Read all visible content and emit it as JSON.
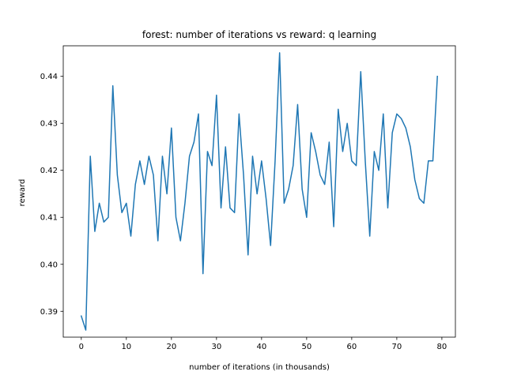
{
  "chart_data": {
    "type": "line",
    "title": "forest: number of iterations vs reward: q learning",
    "xlabel": "number of iterations (in thousands)",
    "ylabel": "reward",
    "xlim": [
      -4,
      83
    ],
    "ylim": [
      0.3845,
      0.4465
    ],
    "xticks": [
      0,
      10,
      20,
      30,
      40,
      50,
      60,
      70,
      80
    ],
    "yticks": [
      0.39,
      0.4,
      0.41,
      0.42,
      0.43,
      0.44
    ],
    "ytick_labels": [
      "0.39",
      "0.40",
      "0.41",
      "0.42",
      "0.43",
      "0.44"
    ],
    "grid": false,
    "series": [
      {
        "color": "#1f77b4",
        "x": [
          0,
          1,
          2,
          3,
          4,
          5,
          6,
          7,
          8,
          9,
          10,
          11,
          12,
          13,
          14,
          15,
          16,
          17,
          18,
          19,
          20,
          21,
          22,
          23,
          24,
          25,
          26,
          27,
          28,
          29,
          30,
          31,
          32,
          33,
          34,
          35,
          36,
          37,
          38,
          39,
          40,
          41,
          42,
          43,
          44,
          45,
          46,
          47,
          48,
          49,
          50,
          51,
          52,
          53,
          54,
          55,
          56,
          57,
          58,
          59,
          60,
          61,
          62,
          63,
          64,
          65,
          66,
          67,
          68,
          69,
          70,
          71,
          72,
          73,
          74,
          75,
          76,
          77,
          78,
          79
        ],
        "y": [
          0.389,
          0.386,
          0.423,
          0.407,
          0.413,
          0.409,
          0.41,
          0.438,
          0.419,
          0.411,
          0.413,
          0.406,
          0.417,
          0.422,
          0.417,
          0.423,
          0.419,
          0.405,
          0.423,
          0.415,
          0.429,
          0.41,
          0.405,
          0.413,
          0.423,
          0.426,
          0.432,
          0.398,
          0.424,
          0.421,
          0.436,
          0.412,
          0.425,
          0.412,
          0.411,
          0.432,
          0.419,
          0.402,
          0.423,
          0.415,
          0.422,
          0.414,
          0.404,
          0.422,
          0.445,
          0.413,
          0.416,
          0.421,
          0.434,
          0.416,
          0.41,
          0.428,
          0.424,
          0.419,
          0.417,
          0.426,
          0.408,
          0.433,
          0.424,
          0.43,
          0.422,
          0.421,
          0.441,
          0.422,
          0.406,
          0.424,
          0.42,
          0.432,
          0.412,
          0.428,
          0.432,
          0.431,
          0.429,
          0.425,
          0.418,
          0.414,
          0.413,
          0.422,
          0.422,
          0.44
        ]
      }
    ]
  }
}
